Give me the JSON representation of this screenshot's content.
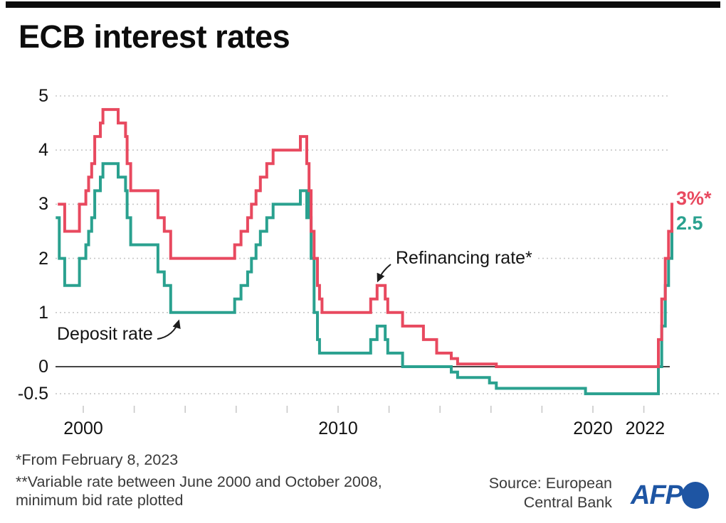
{
  "header": {
    "title": "ECB interest rates"
  },
  "chart_data": {
    "type": "line",
    "subtype": "step",
    "title": "ECB interest rates",
    "grid": "horizontal dotted",
    "legend_position": "inline annotations",
    "xlim": [
      1998.9,
      2023.16
    ],
    "ylim": [
      -0.5,
      5
    ],
    "x_axis": {
      "tick_years": [
        2000,
        2002,
        2004,
        2006,
        2008,
        2010,
        2012,
        2014,
        2016,
        2018,
        2020,
        2022
      ],
      "labels": [
        {
          "text": "2000",
          "year": 2000
        },
        {
          "text": "2010",
          "year": 2010
        },
        {
          "text": "2020",
          "year": 2020
        },
        {
          "text": "2022",
          "year": 2022.05
        }
      ]
    },
    "y_axis": {
      "ticks": [
        {
          "value": 5,
          "label": "5"
        },
        {
          "value": 4,
          "label": "4"
        },
        {
          "value": 3,
          "label": "3"
        },
        {
          "value": 2,
          "label": "2"
        },
        {
          "value": 1,
          "label": "1"
        },
        {
          "value": 0,
          "label": "0"
        },
        {
          "value": -0.5,
          "label": "-0.5"
        }
      ],
      "zero_line_value": 0
    },
    "series": [
      {
        "id": "refinancing-rate",
        "name": "Refinancing rate*",
        "color": "#e8495f",
        "points": [
          [
            1999.0,
            3.0
          ],
          [
            1999.27,
            2.5
          ],
          [
            1999.85,
            3.0
          ],
          [
            2000.1,
            3.25
          ],
          [
            2000.21,
            3.5
          ],
          [
            2000.33,
            3.75
          ],
          [
            2000.45,
            4.25
          ],
          [
            2000.67,
            4.5
          ],
          [
            2000.77,
            4.75
          ],
          [
            2001.37,
            4.5
          ],
          [
            2001.66,
            4.25
          ],
          [
            2001.72,
            3.75
          ],
          [
            2001.86,
            3.25
          ],
          [
            2002.93,
            2.75
          ],
          [
            2003.18,
            2.5
          ],
          [
            2003.43,
            2.0
          ],
          [
            2005.94,
            2.25
          ],
          [
            2006.19,
            2.5
          ],
          [
            2006.45,
            2.75
          ],
          [
            2006.6,
            3.0
          ],
          [
            2006.78,
            3.25
          ],
          [
            2006.95,
            3.5
          ],
          [
            2007.2,
            3.75
          ],
          [
            2007.45,
            4.0
          ],
          [
            2008.52,
            4.25
          ],
          [
            2008.77,
            3.75
          ],
          [
            2008.86,
            3.25
          ],
          [
            2008.94,
            2.5
          ],
          [
            2009.06,
            2.0
          ],
          [
            2009.19,
            1.5
          ],
          [
            2009.27,
            1.25
          ],
          [
            2009.37,
            1.0
          ],
          [
            2011.28,
            1.25
          ],
          [
            2011.53,
            1.5
          ],
          [
            2011.85,
            1.25
          ],
          [
            2011.95,
            1.0
          ],
          [
            2012.53,
            0.75
          ],
          [
            2013.35,
            0.5
          ],
          [
            2013.87,
            0.25
          ],
          [
            2014.44,
            0.15
          ],
          [
            2014.69,
            0.05
          ],
          [
            2016.21,
            0.0
          ],
          [
            2022.57,
            0.5
          ],
          [
            2022.7,
            1.25
          ],
          [
            2022.84,
            2.0
          ],
          [
            2022.97,
            2.5
          ],
          [
            2023.1,
            3.0
          ]
        ]
      },
      {
        "id": "deposit-rate",
        "name": "Deposit rate",
        "color": "#2aa18f",
        "points": [
          [
            1998.92,
            2.75
          ],
          [
            1999.06,
            2.0
          ],
          [
            1999.27,
            1.5
          ],
          [
            1999.85,
            2.0
          ],
          [
            2000.1,
            2.25
          ],
          [
            2000.21,
            2.5
          ],
          [
            2000.33,
            2.75
          ],
          [
            2000.45,
            3.25
          ],
          [
            2000.67,
            3.5
          ],
          [
            2000.77,
            3.75
          ],
          [
            2001.37,
            3.5
          ],
          [
            2001.66,
            3.25
          ],
          [
            2001.72,
            2.75
          ],
          [
            2001.86,
            2.25
          ],
          [
            2002.93,
            1.75
          ],
          [
            2003.18,
            1.5
          ],
          [
            2003.43,
            1.0
          ],
          [
            2005.94,
            1.25
          ],
          [
            2006.19,
            1.5
          ],
          [
            2006.45,
            1.75
          ],
          [
            2006.6,
            2.0
          ],
          [
            2006.78,
            2.25
          ],
          [
            2006.95,
            2.5
          ],
          [
            2007.2,
            2.75
          ],
          [
            2007.45,
            3.0
          ],
          [
            2008.52,
            3.25
          ],
          [
            2008.77,
            2.75
          ],
          [
            2008.79,
            3.25
          ],
          [
            2008.86,
            2.75
          ],
          [
            2008.94,
            2.0
          ],
          [
            2009.06,
            1.0
          ],
          [
            2009.19,
            0.5
          ],
          [
            2009.27,
            0.25
          ],
          [
            2011.28,
            0.5
          ],
          [
            2011.53,
            0.75
          ],
          [
            2011.85,
            0.5
          ],
          [
            2011.95,
            0.25
          ],
          [
            2012.53,
            0.0
          ],
          [
            2014.44,
            -0.1
          ],
          [
            2014.69,
            -0.2
          ],
          [
            2015.94,
            -0.3
          ],
          [
            2016.21,
            -0.4
          ],
          [
            2019.71,
            -0.5
          ],
          [
            2022.57,
            0.0
          ],
          [
            2022.7,
            0.75
          ],
          [
            2022.84,
            1.5
          ],
          [
            2022.97,
            2.0
          ],
          [
            2023.1,
            2.5
          ]
        ]
      }
    ],
    "annotations": [
      {
        "id": "refinancing",
        "text": "Refinancing rate*"
      },
      {
        "id": "deposit",
        "text": "Deposit rate"
      }
    ],
    "end_labels": [
      {
        "text": "3%*",
        "color": "#e8495f"
      },
      {
        "text": "2.5",
        "color": "#2aa18f"
      }
    ]
  },
  "footnotes": {
    "note1": "*From February 8, 2023",
    "note2": "**Variable rate between June 2000 and October 2008, minimum bid rate plotted"
  },
  "source": {
    "text": "Source: European\nCentral Bank"
  },
  "branding": {
    "afp": "AFP"
  }
}
